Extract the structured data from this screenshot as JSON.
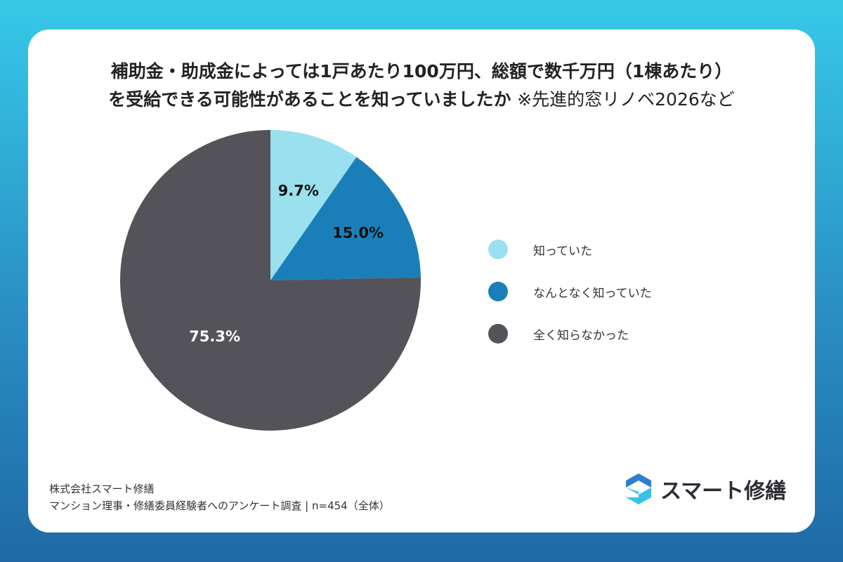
{
  "title_line1": "補助金・助成金によっては1戸あたり100万円、総額で数千万円（1棟あたり）",
  "title_line2": "を受給できる可能性があることを知っていましたか",
  "title_note": "※先進的窓リノベ2026など",
  "chart_data": {
    "type": "pie",
    "categories": [
      "知っていた",
      "なんとなく知っていた",
      "全く知らなかった"
    ],
    "values": [
      9.7,
      15.0,
      75.3
    ],
    "labels": [
      "9.7%",
      "15.0%",
      "75.3%"
    ],
    "colors": [
      "#9be0ee",
      "#1a7fb8",
      "#55535a"
    ],
    "label_colors": [
      "#111111",
      "#111111",
      "#ffffff"
    ],
    "legend_position": "right"
  },
  "footer": {
    "company": "株式会社スマート修繕",
    "survey": "マンション理事・修繕委員経験者へのアンケート調査 | n=454（全体）"
  },
  "brand": {
    "name": "スマート修繕",
    "icon": "s-logo-icon",
    "colors": [
      "#2f7dd1",
      "#37c3e6"
    ]
  }
}
